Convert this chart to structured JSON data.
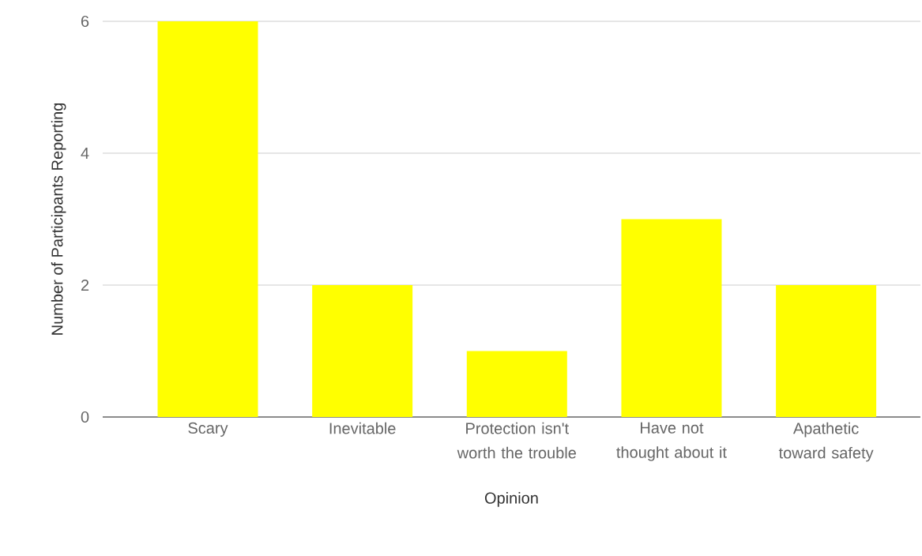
{
  "chart_data": {
    "type": "bar",
    "xlabel": "Opinion",
    "ylabel": "Number of Participants Reporting",
    "categories": [
      "Scary",
      "Inevitable",
      "Protection isn't worth the trouble",
      "Have not thought about it",
      "Apathetic toward safety"
    ],
    "values": [
      6,
      2,
      1,
      3,
      2
    ],
    "color": "#ffff00",
    "ylim": [
      0,
      6
    ],
    "yticks": [
      0,
      2,
      4,
      6
    ],
    "grid": "y"
  }
}
